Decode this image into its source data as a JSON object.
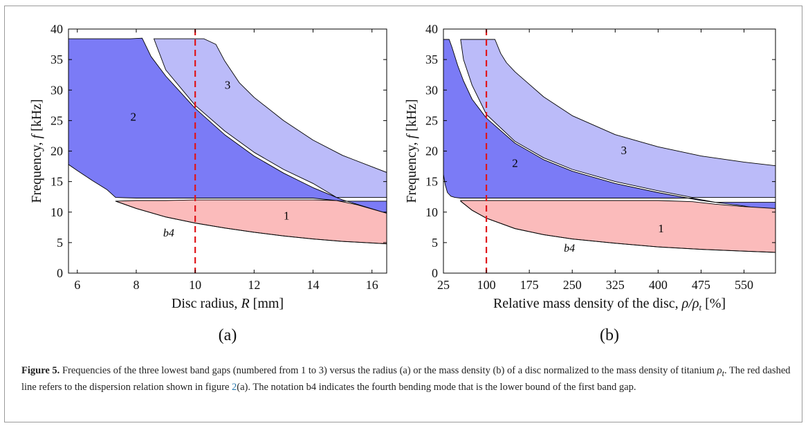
{
  "chart_data": [
    {
      "id": "a",
      "type": "area",
      "panel_label": "(a)",
      "xlabel_text": "Disc radius, ",
      "xlabel_var": "R",
      "xlabel_unit": " [mm]",
      "ylabel_text": "Frequency, ",
      "ylabel_var": "f",
      "ylabel_unit": " [kHz]",
      "xlim": [
        5.7,
        16.5
      ],
      "ylim": [
        0,
        40
      ],
      "xticks": [
        6,
        8,
        10,
        12,
        14,
        16
      ],
      "yticks": [
        0,
        5,
        10,
        15,
        20,
        25,
        30,
        35,
        40
      ],
      "ref_line_x": 10,
      "ref_line_color": "#e0151a",
      "b4_label": "b4",
      "b4_label_pos": [
        9.1,
        6.0
      ],
      "b4_curve": {
        "x": [
          7.3,
          8,
          9,
          10,
          11,
          12,
          13,
          14,
          15,
          16.5
        ],
        "y": [
          11.8,
          10.6,
          9.2,
          8.2,
          7.4,
          6.7,
          6.1,
          5.6,
          5.2,
          4.8
        ]
      },
      "series": [
        {
          "name": "2",
          "color": "#7b7bf6",
          "label_pos": [
            7.9,
            25.0
          ],
          "upper": {
            "x": [
              5.7,
              7.3,
              7.8,
              8.2,
              8.5,
              9,
              10,
              11,
              12,
              13,
              14,
              15,
              16.5
            ],
            "y": [
              38.4,
              38.4,
              38.4,
              38.5,
              35.5,
              32.3,
              27.0,
              22.7,
              19.2,
              16.4,
              14.0,
              12.0,
              9.8
            ]
          },
          "lower": {
            "x": [
              5.7,
              6,
              6.5,
              7,
              7.3,
              8,
              9,
              10,
              11,
              12,
              13,
              14,
              15,
              16.5
            ],
            "y": [
              17.8,
              16.8,
              15.2,
              13.7,
              12.4,
              12.3,
              12.3,
              12.3,
              12.3,
              12.3,
              12.3,
              12.3,
              11.8,
              11.8
            ]
          }
        },
        {
          "name": "3",
          "color": "#bbbbf9",
          "label_pos": [
            11.1,
            30.2
          ],
          "upper": {
            "x": [
              8.6,
              10.3,
              10.7,
              11,
              11.5,
              12,
              13,
              14,
              15,
              16.5
            ],
            "y": [
              38.4,
              38.4,
              37.5,
              34.8,
              31.2,
              28.8,
              25.0,
              21.8,
              19.3,
              16.5
            ]
          },
          "lower": {
            "x": [
              8.6,
              9,
              10,
              11,
              12,
              13,
              14,
              14.8,
              15.5,
              16.5
            ],
            "y": [
              38.4,
              33.3,
              27.5,
              23.3,
              19.8,
              17.0,
              14.7,
              12.4,
              12.4,
              12.4
            ]
          }
        },
        {
          "name": "1",
          "color": "#fbbbbb",
          "label_pos": [
            13.1,
            8.8
          ],
          "upper": {
            "x": [
              7.3,
              8,
              9,
              10,
              11,
              12,
              13,
              14,
              14.8,
              15.5,
              16.5
            ],
            "y": [
              11.8,
              11.9,
              11.9,
              12.0,
              12.0,
              12.0,
              12.0,
              12.0,
              11.9,
              11.2,
              9.8
            ]
          },
          "lower": {
            "x": [
              7.3,
              8,
              9,
              10,
              11,
              12,
              13,
              14,
              15,
              16.5
            ],
            "y": [
              11.8,
              10.6,
              9.2,
              8.2,
              7.4,
              6.7,
              6.1,
              5.6,
              5.2,
              4.8
            ]
          }
        }
      ]
    },
    {
      "id": "b",
      "type": "area",
      "panel_label": "(b)",
      "xlabel_text": "Relative mass density of the disc, ",
      "xlabel_var": "ρ/ρ",
      "xlabel_sub": "t",
      "xlabel_unit": " [%]",
      "ylabel_text": "Frequency, ",
      "ylabel_var": "f",
      "ylabel_unit": " [kHz]",
      "xlim": [
        25,
        605
      ],
      "ylim": [
        0,
        40
      ],
      "xticks": [
        25,
        100,
        175,
        250,
        325,
        400,
        475,
        550
      ],
      "yticks": [
        0,
        5,
        10,
        15,
        20,
        25,
        30,
        35,
        40
      ],
      "ref_line_x": 100,
      "ref_line_color": "#e0151a",
      "b4_label": "b4",
      "b4_label_pos": [
        245,
        3.5
      ],
      "b4_curve": {
        "x": [
          55,
          75,
          100,
          150,
          200,
          250,
          325,
          400,
          475,
          550,
          605
        ],
        "y": [
          11.8,
          10.3,
          9.0,
          7.3,
          6.3,
          5.6,
          4.9,
          4.3,
          3.9,
          3.6,
          3.4
        ]
      },
      "series": [
        {
          "name": "2",
          "color": "#7b7bf6",
          "label_pos": [
            150,
            17.4
          ],
          "upper": {
            "x": [
              25,
              35,
              40,
              50,
              60,
              75,
              100,
              150,
              200,
              250,
              325,
              400,
              475,
              550,
              605
            ],
            "y": [
              38.3,
              38.3,
              37.0,
              34.0,
              31.5,
              28.5,
              25.4,
              21.3,
              18.6,
              16.7,
              14.7,
              13.2,
              11.9,
              11.0,
              10.2
            ]
          },
          "lower": {
            "x": [
              25,
              28,
              32,
              38,
              45,
              55,
              100,
              200,
              300,
              400,
              460,
              500,
              605
            ],
            "y": [
              16.2,
              14.5,
              13.2,
              12.6,
              12.4,
              12.3,
              12.3,
              12.3,
              12.3,
              12.3,
              12.3,
              11.6,
              11.6
            ]
          }
        },
        {
          "name": "3",
          "color": "#bbbbf9",
          "label_pos": [
            340,
            19.5
          ],
          "upper": {
            "x": [
              55,
              115,
              125,
              135,
              150,
              200,
              250,
              325,
              400,
              475,
              550,
              605
            ],
            "y": [
              38.3,
              38.3,
              36.0,
              34.5,
              33.0,
              28.9,
              25.8,
              22.7,
              20.7,
              19.2,
              18.2,
              17.6
            ]
          },
          "lower": {
            "x": [
              55,
              60,
              75,
              100,
              150,
              200,
              250,
              325,
              400,
              460,
              500,
              605
            ],
            "y": [
              38.3,
              35.0,
              30.8,
              26.0,
              21.6,
              18.9,
              17.0,
              15.0,
              13.5,
              12.4,
              12.4,
              12.4
            ]
          }
        },
        {
          "name": "1",
          "color": "#fbbbbb",
          "label_pos": [
            405,
            6.7
          ],
          "upper": {
            "x": [
              55,
              100,
              200,
              300,
              400,
              460,
              500,
              550,
              605
            ],
            "y": [
              11.9,
              11.9,
              11.9,
              11.9,
              11.9,
              11.7,
              11.3,
              10.9,
              10.6
            ]
          },
          "lower": {
            "x": [
              55,
              75,
              100,
              150,
              200,
              250,
              325,
              400,
              475,
              550,
              605
            ],
            "y": [
              11.8,
              10.3,
              9.0,
              7.3,
              6.3,
              5.6,
              4.9,
              4.3,
              3.9,
              3.6,
              3.4
            ]
          }
        }
      ]
    }
  ],
  "caption": {
    "label": "Figure 5.",
    "part1": " Frequencies of the three lowest band gaps (numbered from 1 to 3) versus the radius (a) or the mass density (b) of a disc normalized to the mass density of titanium ",
    "rho_symbol": "ρ",
    "rho_sub": "t",
    "part2": ". The red dashed line refers to the dispersion relation shown in figure ",
    "figure_ref": "2",
    "part3": "(a). The notation b4 indicates the fourth bending mode that is the lower bound of the first band gap."
  }
}
